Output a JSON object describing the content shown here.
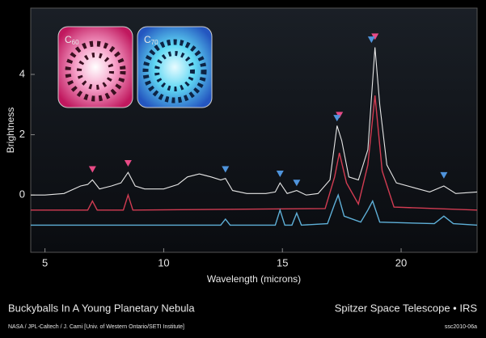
{
  "chart_data": {
    "type": "line",
    "ylabel": "Brightness",
    "xlabel": "Wavelength (microns)",
    "xlim": [
      4.4,
      23.2
    ],
    "ylim": [
      -1.9,
      6.2
    ],
    "xticks": [
      5,
      10,
      15,
      20
    ],
    "yticks": [
      0,
      2,
      4
    ],
    "grid": false,
    "insets": [
      {
        "symbol": "C",
        "sub": "60"
      },
      {
        "symbol": "C",
        "sub": "70"
      }
    ],
    "series": [
      {
        "color": "#e6e6e6",
        "x": [
          4.4,
          5,
          5.8,
          6.5,
          6.8,
          7.0,
          7.3,
          7.8,
          8.2,
          8.5,
          8.8,
          9.2,
          10,
          10.6,
          11,
          11.5,
          12,
          12.4,
          12.6,
          12.9,
          13.5,
          14.3,
          14.7,
          14.9,
          15.2,
          15.6,
          16.0,
          16.5,
          17.0,
          17.3,
          17.5,
          17.8,
          18.2,
          18.6,
          18.9,
          19.1,
          19.4,
          19.8,
          20.5,
          21.2,
          21.8,
          22.3,
          23.2
        ],
        "y": [
          0,
          0,
          0.05,
          0.3,
          0.35,
          0.5,
          0.2,
          0.3,
          0.4,
          0.75,
          0.3,
          0.2,
          0.2,
          0.35,
          0.6,
          0.7,
          0.6,
          0.5,
          0.55,
          0.15,
          0.05,
          0.05,
          0.1,
          0.4,
          0.05,
          0.15,
          0,
          0.05,
          0.5,
          2.3,
          1.8,
          0.6,
          0.5,
          1.5,
          4.9,
          3.0,
          1.0,
          0.4,
          0.25,
          0.1,
          0.3,
          0.05,
          0.1
        ]
      },
      {
        "color": "#d23c52",
        "x": [
          4.4,
          6.8,
          7.0,
          7.2,
          8.3,
          8.5,
          8.7,
          16.8,
          17.2,
          17.4,
          17.7,
          18.2,
          18.6,
          18.9,
          19.2,
          19.7,
          23.2
        ],
        "y": [
          -0.5,
          -0.5,
          -0.2,
          -0.5,
          -0.5,
          0.0,
          -0.5,
          -0.45,
          0.6,
          1.4,
          0.4,
          -0.3,
          1.0,
          3.3,
          0.8,
          -0.4,
          -0.5
        ]
      },
      {
        "color": "#5fb0d8",
        "x": [
          4.4,
          12.4,
          12.6,
          12.8,
          14.7,
          14.9,
          15.1,
          15.4,
          15.6,
          15.8,
          16.9,
          17.2,
          17.35,
          17.6,
          18.3,
          18.6,
          18.8,
          19.1,
          21.4,
          21.8,
          22.2,
          23.2
        ],
        "y": [
          -1.0,
          -1.0,
          -0.8,
          -1.0,
          -1.0,
          -0.5,
          -1.0,
          -1.0,
          -0.6,
          -1.0,
          -0.95,
          -0.3,
          0.0,
          -0.7,
          -0.9,
          -0.5,
          -0.2,
          -0.9,
          -0.95,
          -0.7,
          -0.95,
          -1.0
        ]
      }
    ],
    "markers": [
      {
        "color": "#e84a86",
        "x": [
          7.0,
          8.5,
          17.4,
          18.9
        ],
        "y": [
          0.85,
          1.05,
          2.65,
          5.25
        ]
      },
      {
        "color": "#4f94dc",
        "x": [
          12.6,
          14.9,
          15.6,
          17.3,
          18.75,
          21.8
        ],
        "y": [
          0.85,
          0.7,
          0.4,
          2.55,
          5.15,
          0.65
        ]
      }
    ],
    "title": "Buckyballs In A Young Planetary Nebula",
    "credit": "NASA / JPL-Caltech / J. Cami [Univ. of Western Ontario/SETI Institute]",
    "instrument": "Spitzer Space Telescope • IRS",
    "id_code": "ssc2010-06a"
  }
}
